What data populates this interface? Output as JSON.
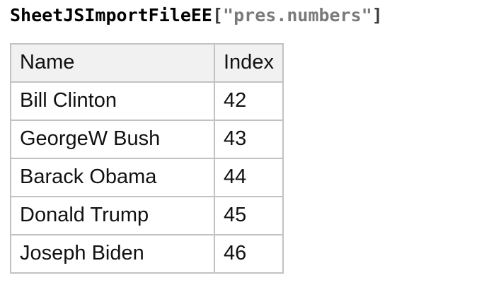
{
  "colors": {
    "background": "#ffffff",
    "text": "#111111",
    "header_bg": "#f1f1f1",
    "border": "#c2c2c2",
    "token_name": "#000000",
    "token_bracket": "#3f3f3f",
    "token_string": "#7a7a7a"
  },
  "title": {
    "object_name": "SheetJSImportFileEE",
    "open_bracket": "[",
    "string_arg": "\"pres.numbers\"",
    "close_bracket": "]"
  },
  "table": {
    "columns": {
      "name": "Name",
      "index": "Index"
    },
    "rows": [
      {
        "name": "Bill Clinton",
        "index": "42"
      },
      {
        "name": "GeorgeW Bush",
        "index": "43"
      },
      {
        "name": "Barack Obama",
        "index": "44"
      },
      {
        "name": "Donald Trump",
        "index": "45"
      },
      {
        "name": "Joseph Biden",
        "index": "46"
      }
    ]
  }
}
